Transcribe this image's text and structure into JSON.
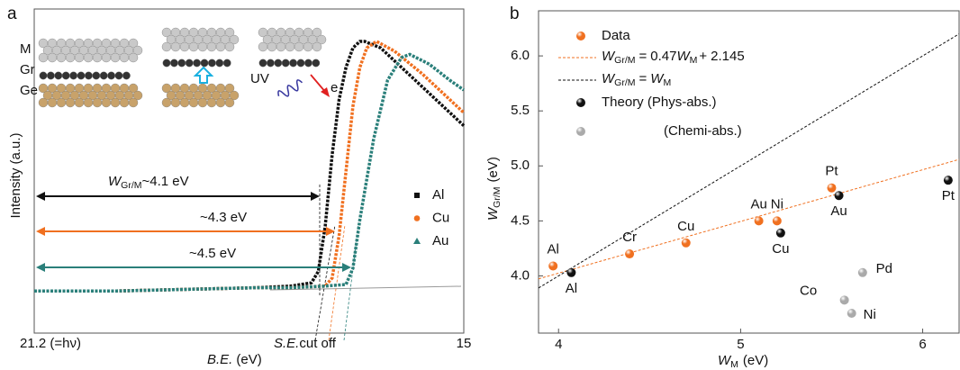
{
  "chart_data": [
    {
      "type": "line",
      "panel": "a",
      "x_label_symbol": "B.E.",
      "x_label_unit": "(eV)",
      "y_label": "Intensity (a.u.)",
      "xlim": [
        21.2,
        15
      ],
      "ylim": [
        0,
        1
      ],
      "xticks": [
        {
          "value": 21.2,
          "label": "21.2 (=hν)"
        },
        15
      ],
      "series": [
        {
          "name": "Al",
          "color": "#111111",
          "marker": "square",
          "x": [
            21.2,
            20,
            19,
            18,
            17.5,
            17.2,
            17.1,
            17.0,
            16.9,
            16.8,
            16.7,
            16.6,
            16.5,
            16.43,
            16.2,
            16.0,
            15.6,
            15.2,
            15.0
          ],
          "values": [
            0.13,
            0.13,
            0.135,
            0.14,
            0.145,
            0.155,
            0.19,
            0.33,
            0.55,
            0.72,
            0.82,
            0.88,
            0.9,
            0.9,
            0.88,
            0.84,
            0.76,
            0.68,
            0.64
          ]
        },
        {
          "name": "Cu",
          "color": "#f07020",
          "marker": "circle",
          "x": [
            21.2,
            20,
            19,
            18,
            17.5,
            17.0,
            16.9,
            16.8,
            16.7,
            16.6,
            16.5,
            16.4,
            16.26,
            16.0,
            15.6,
            15.2,
            15.0
          ],
          "values": [
            0.13,
            0.13,
            0.135,
            0.14,
            0.14,
            0.145,
            0.17,
            0.3,
            0.5,
            0.7,
            0.82,
            0.88,
            0.9,
            0.87,
            0.8,
            0.72,
            0.68
          ]
        },
        {
          "name": "Au",
          "color": "#2a7f7a",
          "marker": "triangle",
          "x": [
            21.2,
            20,
            19,
            18,
            17.5,
            17.0,
            16.7,
            16.6,
            16.5,
            16.3,
            16.1,
            15.9,
            15.78,
            15.5,
            15.2,
            15.0
          ],
          "values": [
            0.13,
            0.13,
            0.135,
            0.14,
            0.14,
            0.145,
            0.15,
            0.2,
            0.35,
            0.6,
            0.78,
            0.85,
            0.86,
            0.83,
            0.78,
            0.75
          ]
        }
      ],
      "cutoff_label": {
        "symbol": "S.E.",
        "text": "cut off"
      },
      "annotations": [
        {
          "symbol": "W",
          "sub": "Gr/M",
          "text": "~4.1 eV",
          "color": "#111111"
        },
        {
          "text": "~4.3 eV",
          "color": "#f07020"
        },
        {
          "text": "~4.5 eV",
          "color": "#2a7f7a"
        }
      ],
      "layer_labels": [
        "M",
        "Gr",
        "Ge"
      ],
      "uv_label": "UV",
      "electron_label": "e"
    },
    {
      "type": "scatter",
      "panel": "b",
      "x_label": {
        "symbol": "W",
        "sub": "M",
        "unit": "(eV)"
      },
      "y_label": {
        "symbol": "W",
        "sub": "Gr/M",
        "unit": "(eV)"
      },
      "xlim": [
        3.89,
        6.2
      ],
      "ylim": [
        3.48,
        6.41
      ],
      "xticks": [
        4,
        5,
        6
      ],
      "yticks": [
        {
          "value": 4,
          "label": "4.0"
        },
        4.5,
        {
          "value": 5,
          "label": "5.0"
        },
        5.5,
        {
          "value": 6,
          "label": "6.0"
        }
      ],
      "series": [
        {
          "name": "Data",
          "color": "#f07020",
          "x": [
            3.97,
            4.39,
            4.7,
            5.1,
            5.2,
            5.5
          ],
          "values": [
            4.09,
            4.2,
            4.3,
            4.5,
            4.5,
            4.8
          ],
          "labels": [
            "Al",
            "Cr",
            "Cu",
            "Au",
            "Ni",
            "Pt"
          ]
        },
        {
          "name": "Theory (Phys-abs.)",
          "color": "#111111",
          "x": [
            4.07,
            5.22,
            5.54,
            6.14
          ],
          "values": [
            4.03,
            4.39,
            4.73,
            4.87
          ],
          "labels": [
            "Al",
            "Cu",
            "Au",
            "Pt"
          ]
        },
        {
          "name": "(Chemi-abs.)",
          "color": "#aaaaaa",
          "x": [
            5.57,
            5.61,
            5.67
          ],
          "values": [
            3.78,
            3.66,
            4.03
          ],
          "labels": [
            "Co",
            "Ni",
            "Pd"
          ]
        }
      ],
      "fit": {
        "color": "#f07020",
        "symbol": "W",
        "sub": "Gr/M",
        "eq": "=",
        "slope": 0.47,
        "rhs_symbol": "W",
        "rhs_sub": "M",
        "plus": "+",
        "intercept": 2.145
      },
      "identity": {
        "color": "#111111",
        "symbol": "W",
        "sub": "Gr/M",
        "eq": "=",
        "rhs_symbol": "W",
        "rhs_sub": "M"
      }
    }
  ]
}
